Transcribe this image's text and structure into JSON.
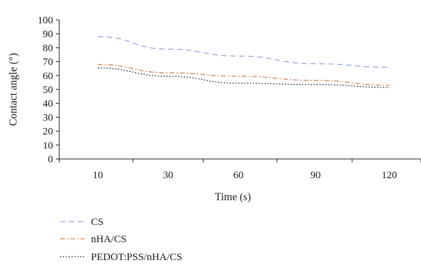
{
  "chart_data": {
    "type": "line",
    "title": "",
    "xlabel": "Time (s)",
    "ylabel": "Contact angle (°)",
    "categories": [
      "10",
      "30",
      "60",
      "90",
      "120"
    ],
    "ylim": [
      0,
      100
    ],
    "yticks": [
      "0",
      "10",
      "20",
      "30",
      "40",
      "50",
      "60",
      "70",
      "80",
      "90",
      "100"
    ],
    "grid": false,
    "legend_position": "bottom-left",
    "series": [
      {
        "name": "CS",
        "values": [
          88,
          79,
          74,
          68.5,
          66
        ],
        "color": "#8faadc",
        "dash": "dashed"
      },
      {
        "name": "nHA/CS",
        "values": [
          68,
          62,
          59.5,
          56.5,
          53
        ],
        "color": "#d4814c",
        "dash": "dash-dot"
      },
      {
        "name": "PEDOT:PSS/nHA/CS",
        "values": [
          65.5,
          59.5,
          54.5,
          53.5,
          51.5
        ],
        "color": "#1a1a1a",
        "dash": "dotted"
      }
    ]
  }
}
